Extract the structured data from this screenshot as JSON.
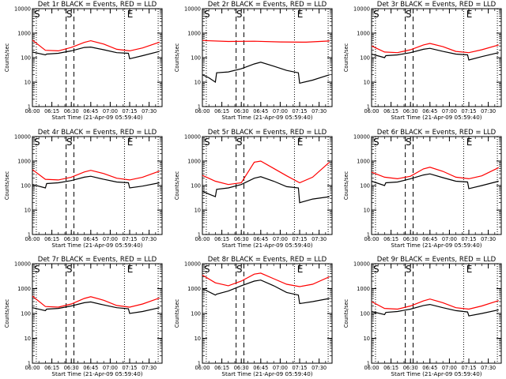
{
  "figure": {
    "background": "#ffffff",
    "colors": {
      "events": "#000000",
      "lld": "#ff0000",
      "axes": "#000000"
    }
  },
  "chart_data": [
    {
      "type": "line",
      "title": "Det 1r BLACK = Events, RED = LLD",
      "xlabel": "Start Time (21-Apr-09 05:59:40)",
      "ylabel": "Counts/sec",
      "y_scale": "log",
      "ylim": [
        1,
        10000
      ],
      "xlim": [
        "06:00",
        "07:40"
      ],
      "x_ticks": [
        "06:00",
        "06:15",
        "06:30",
        "06:45",
        "07:00",
        "07:15",
        "07:30"
      ],
      "y_ticks": [
        "1",
        "10",
        "100",
        "1000",
        "10000"
      ],
      "markers": [
        "S",
        "E"
      ],
      "series": [
        {
          "name": "BLACK = Events",
          "color": "#000000",
          "x": [
            "06:00",
            "06:10",
            "06:11",
            "06:20",
            "06:30",
            "06:40",
            "06:45",
            "06:55",
            "07:05",
            "07:14",
            "07:15",
            "07:25",
            "07:38"
          ],
          "y": [
            170,
            130,
            140,
            150,
            190,
            260,
            270,
            210,
            160,
            150,
            90,
            120,
            180
          ]
        },
        {
          "name": "RED = LLD",
          "color": "#ff0000",
          "x": [
            "06:00",
            "06:10",
            "06:20",
            "06:30",
            "06:40",
            "06:45",
            "06:55",
            "07:05",
            "07:15",
            "07:25",
            "07:38"
          ],
          "y": [
            520,
            200,
            190,
            260,
            420,
            490,
            360,
            220,
            190,
            250,
            430
          ]
        }
      ]
    },
    {
      "type": "line",
      "title": "Det 2r BLACK = Events, RED = LLD",
      "xlabel": "Start Time (21-Apr-09 05:59:40)",
      "ylabel": "Counts/sec",
      "y_scale": "log",
      "ylim": [
        1,
        10000
      ],
      "xlim": [
        "06:00",
        "07:40"
      ],
      "x_ticks": [
        "06:00",
        "06:15",
        "06:30",
        "06:45",
        "07:00",
        "07:15",
        "07:30"
      ],
      "y_ticks": [
        "1",
        "10",
        "100",
        "1000",
        "10000"
      ],
      "markers": [
        "S",
        "E"
      ],
      "series": [
        {
          "name": "BLACK = Events",
          "color": "#000000",
          "x": [
            "06:00",
            "06:05",
            "06:10",
            "06:11",
            "06:20",
            "06:30",
            "06:40",
            "06:45",
            "06:55",
            "07:05",
            "07:14",
            "07:15",
            "07:25",
            "07:38"
          ],
          "y": [
            20,
            15,
            10,
            24,
            26,
            35,
            55,
            65,
            45,
            30,
            24,
            9,
            12,
            20
          ]
        },
        {
          "name": "RED = LLD",
          "color": "#ff0000",
          "x": [
            "06:00",
            "06:20",
            "06:40",
            "07:00",
            "07:20",
            "07:38"
          ],
          "y": [
            500,
            460,
            470,
            440,
            430,
            480
          ]
        }
      ]
    },
    {
      "type": "line",
      "title": "Det 3r BLACK = Events, RED = LLD",
      "xlabel": "Start Time (21-Apr-09 05:59:40)",
      "ylabel": "Counts/sec",
      "y_scale": "log",
      "ylim": [
        1,
        10000
      ],
      "xlim": [
        "06:00",
        "07:40"
      ],
      "x_ticks": [
        "06:00",
        "06:15",
        "06:30",
        "06:45",
        "07:00",
        "07:15",
        "07:30"
      ],
      "y_ticks": [
        "1",
        "10",
        "100",
        "1000",
        "10000"
      ],
      "markers": [
        "S",
        "E"
      ],
      "series": [
        {
          "name": "BLACK = Events",
          "color": "#000000",
          "x": [
            "06:00",
            "06:10",
            "06:11",
            "06:20",
            "06:30",
            "06:40",
            "06:45",
            "06:55",
            "07:05",
            "07:14",
            "07:15",
            "07:25",
            "07:38"
          ],
          "y": [
            140,
            100,
            120,
            130,
            160,
            220,
            240,
            180,
            140,
            130,
            80,
            110,
            160
          ]
        },
        {
          "name": "RED = LLD",
          "color": "#ff0000",
          "x": [
            "06:00",
            "06:10",
            "06:20",
            "06:30",
            "06:40",
            "06:45",
            "06:55",
            "07:05",
            "07:15",
            "07:25",
            "07:38"
          ],
          "y": [
            300,
            170,
            160,
            210,
            330,
            380,
            280,
            180,
            160,
            210,
            330
          ]
        }
      ]
    },
    {
      "type": "line",
      "title": "Det 4r BLACK = Events, RED = LLD",
      "xlabel": "Start Time (21-Apr-09 05:59:40)",
      "ylabel": "Counts/sec",
      "y_scale": "log",
      "ylim": [
        1,
        10000
      ],
      "xlim": [
        "06:00",
        "07:40"
      ],
      "x_ticks": [
        "06:00",
        "06:15",
        "06:30",
        "06:45",
        "07:00",
        "07:15",
        "07:30"
      ],
      "y_ticks": [
        "1",
        "10",
        "100",
        "1000",
        "10000"
      ],
      "markers": [
        "S",
        "E"
      ],
      "series": [
        {
          "name": "BLACK = Events",
          "color": "#000000",
          "x": [
            "06:00",
            "06:10",
            "06:11",
            "06:20",
            "06:30",
            "06:40",
            "06:45",
            "06:55",
            "07:05",
            "07:14",
            "07:15",
            "07:25",
            "07:38"
          ],
          "y": [
            110,
            80,
            120,
            130,
            160,
            220,
            240,
            180,
            140,
            130,
            80,
            95,
            130
          ]
        },
        {
          "name": "RED = LLD",
          "color": "#ff0000",
          "x": [
            "06:00",
            "06:10",
            "06:20",
            "06:30",
            "06:40",
            "06:45",
            "06:55",
            "07:05",
            "07:15",
            "07:25",
            "07:38"
          ],
          "y": [
            450,
            180,
            170,
            220,
            360,
            420,
            310,
            200,
            170,
            220,
            390
          ]
        }
      ]
    },
    {
      "type": "line",
      "title": "Det 5r BLACK = Events, RED = LLD",
      "xlabel": "Start Time (21-Apr-09 05:59:40)",
      "ylabel": "Counts/sec",
      "y_scale": "log",
      "ylim": [
        1,
        10000
      ],
      "xlim": [
        "06:00",
        "07:40"
      ],
      "x_ticks": [
        "06:00",
        "06:15",
        "06:30",
        "06:45",
        "07:00",
        "07:15",
        "07:30"
      ],
      "y_ticks": [
        "1",
        "10",
        "100",
        "1000",
        "10000"
      ],
      "markers": [
        "S",
        "E"
      ],
      "series": [
        {
          "name": "BLACK = Events",
          "color": "#000000",
          "x": [
            "06:00",
            "06:05",
            "06:10",
            "06:11",
            "06:20",
            "06:30",
            "06:40",
            "06:45",
            "06:55",
            "07:05",
            "07:14",
            "07:15",
            "07:25",
            "07:38"
          ],
          "y": [
            60,
            45,
            35,
            70,
            80,
            110,
            200,
            230,
            150,
            90,
            80,
            20,
            28,
            35
          ]
        },
        {
          "name": "RED = LLD",
          "color": "#ff0000",
          "x": [
            "06:00",
            "06:10",
            "06:20",
            "06:30",
            "06:40",
            "06:45",
            "06:55",
            "07:05",
            "07:15",
            "07:25",
            "07:38"
          ],
          "y": [
            260,
            150,
            110,
            130,
            900,
            1000,
            500,
            250,
            130,
            220,
            900
          ]
        }
      ]
    },
    {
      "type": "line",
      "title": "Det 6r BLACK = Events, RED = LLD",
      "xlabel": "Start Time (21-Apr-09 05:59:40)",
      "ylabel": "Counts/sec",
      "y_scale": "log",
      "ylim": [
        1,
        10000
      ],
      "xlim": [
        "06:00",
        "07:40"
      ],
      "x_ticks": [
        "06:00",
        "06:15",
        "06:30",
        "06:45",
        "07:00",
        "07:15",
        "07:30"
      ],
      "y_ticks": [
        "1",
        "10",
        "100",
        "1000",
        "10000"
      ],
      "markers": [
        "S",
        "E"
      ],
      "series": [
        {
          "name": "BLACK = Events",
          "color": "#000000",
          "x": [
            "06:00",
            "06:10",
            "06:11",
            "06:20",
            "06:30",
            "06:40",
            "06:45",
            "06:55",
            "07:05",
            "07:14",
            "07:15",
            "07:25",
            "07:38"
          ],
          "y": [
            150,
            100,
            130,
            140,
            190,
            270,
            300,
            210,
            150,
            140,
            75,
            100,
            150
          ]
        },
        {
          "name": "RED = LLD",
          "color": "#ff0000",
          "x": [
            "06:00",
            "06:10",
            "06:20",
            "06:30",
            "06:40",
            "06:45",
            "06:55",
            "07:05",
            "07:15",
            "07:25",
            "07:38"
          ],
          "y": [
            350,
            220,
            190,
            240,
            480,
            560,
            380,
            220,
            190,
            250,
            540
          ]
        }
      ]
    },
    {
      "type": "line",
      "title": "Det 7r BLACK = Events, RED = LLD",
      "xlabel": "Start Time (21-Apr-09 05:59:40)",
      "ylabel": "Counts/sec",
      "y_scale": "log",
      "ylim": [
        1,
        10000
      ],
      "xlim": [
        "06:00",
        "07:40"
      ],
      "x_ticks": [
        "06:00",
        "06:15",
        "06:30",
        "06:45",
        "07:00",
        "07:15",
        "07:30"
      ],
      "y_ticks": [
        "1",
        "10",
        "100",
        "1000",
        "10000"
      ],
      "markers": [
        "S",
        "E"
      ],
      "series": [
        {
          "name": "BLACK = Events",
          "color": "#000000",
          "x": [
            "06:00",
            "06:10",
            "06:11",
            "06:20",
            "06:30",
            "06:40",
            "06:45",
            "06:55",
            "07:05",
            "07:14",
            "07:15",
            "07:25",
            "07:38"
          ],
          "y": [
            170,
            130,
            150,
            160,
            200,
            270,
            290,
            220,
            170,
            155,
            100,
            120,
            170
          ]
        },
        {
          "name": "RED = LLD",
          "color": "#ff0000",
          "x": [
            "06:00",
            "06:10",
            "06:20",
            "06:30",
            "06:40",
            "06:45",
            "06:55",
            "07:05",
            "07:15",
            "07:25",
            "07:38"
          ],
          "y": [
            500,
            190,
            180,
            240,
            400,
            470,
            340,
            210,
            180,
            240,
            420
          ]
        }
      ]
    },
    {
      "type": "line",
      "title": "Det 8r BLACK = Events, RED = LLD",
      "xlabel": "Start Time (21-Apr-09 05:59:40)",
      "ylabel": "Counts/sec",
      "y_scale": "log",
      "ylim": [
        1,
        10000
      ],
      "xlim": [
        "06:00",
        "07:40"
      ],
      "x_ticks": [
        "06:00",
        "06:15",
        "06:30",
        "06:45",
        "07:00",
        "07:15",
        "07:30"
      ],
      "y_ticks": [
        "1",
        "10",
        "100",
        "1000",
        "10000"
      ],
      "markers": [
        "S",
        "E"
      ],
      "series": [
        {
          "name": "BLACK = Events",
          "color": "#000000",
          "x": [
            "06:00",
            "06:10",
            "06:11",
            "06:20",
            "06:30",
            "06:40",
            "06:45",
            "06:55",
            "07:05",
            "07:14",
            "07:15",
            "07:25",
            "07:38"
          ],
          "y": [
            1000,
            550,
            600,
            800,
            1300,
            2000,
            2200,
            1300,
            700,
            550,
            250,
            300,
            400
          ]
        },
        {
          "name": "RED = LLD",
          "color": "#ff0000",
          "x": [
            "06:00",
            "06:10",
            "06:20",
            "06:30",
            "06:40",
            "06:45",
            "06:55",
            "07:05",
            "07:15",
            "07:25",
            "07:38"
          ],
          "y": [
            3500,
            1700,
            1300,
            2000,
            3800,
            4200,
            2500,
            1500,
            1200,
            1500,
            3000
          ]
        }
      ]
    },
    {
      "type": "line",
      "title": "Det 9r BLACK = Events, RED = LLD",
      "xlabel": "Start Time (21-Apr-09 05:59:40)",
      "ylabel": "Counts/sec",
      "y_scale": "log",
      "ylim": [
        1,
        10000
      ],
      "xlim": [
        "06:00",
        "07:40"
      ],
      "x_ticks": [
        "06:00",
        "06:15",
        "06:30",
        "06:45",
        "07:00",
        "07:15",
        "07:30"
      ],
      "y_ticks": [
        "1",
        "10",
        "100",
        "1000",
        "10000"
      ],
      "markers": [
        "S",
        "E"
      ],
      "series": [
        {
          "name": "BLACK = Events",
          "color": "#000000",
          "x": [
            "06:00",
            "06:10",
            "06:11",
            "06:20",
            "06:30",
            "06:40",
            "06:45",
            "06:55",
            "07:05",
            "07:14",
            "07:15",
            "07:25",
            "07:38"
          ],
          "y": [
            120,
            90,
            110,
            120,
            150,
            210,
            230,
            170,
            130,
            115,
            80,
            100,
            140
          ]
        },
        {
          "name": "RED = LLD",
          "color": "#ff0000",
          "x": [
            "06:00",
            "06:10",
            "06:20",
            "06:30",
            "06:40",
            "06:45",
            "06:55",
            "07:05",
            "07:15",
            "07:25",
            "07:38"
          ],
          "y": [
            300,
            160,
            150,
            200,
            320,
            380,
            270,
            170,
            150,
            200,
            330
          ]
        }
      ]
    }
  ]
}
